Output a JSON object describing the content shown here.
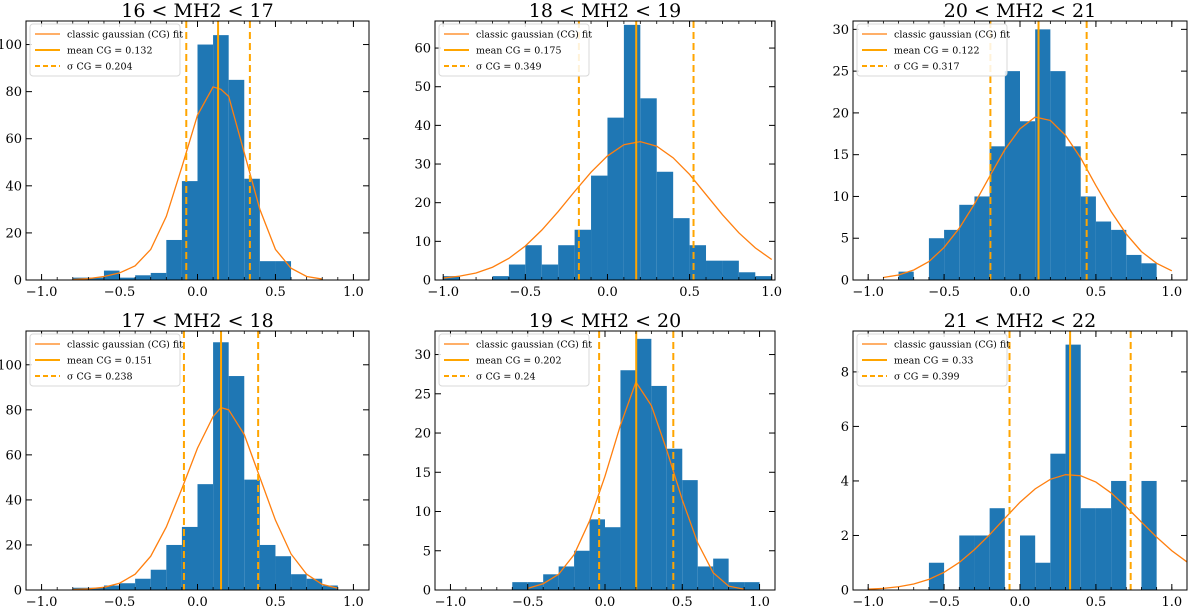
{
  "figure_title": "Histograms with classic gaussian fits per MH2 bin",
  "colors": {
    "bar": "#1f77b4",
    "fit": "#ff7f0e",
    "lines": "#ffa500",
    "axis": "#000000"
  },
  "chart_data": [
    {
      "type": "bar",
      "title": "16 < MH2 < 17",
      "xlim": [
        -1.1,
        1.1
      ],
      "ylim": [
        0,
        110
      ],
      "xticks": [
        -1.0,
        -0.5,
        0.0,
        0.5,
        1.0
      ],
      "yticks": [
        0,
        20,
        40,
        60,
        80,
        100
      ],
      "bin_edges": [
        -0.8,
        -0.7,
        -0.6,
        -0.5,
        -0.4,
        -0.3,
        -0.2,
        -0.1,
        0.0,
        0.1,
        0.2,
        0.3,
        0.4,
        0.5,
        0.6
      ],
      "values": [
        1,
        1,
        4,
        1,
        2,
        3,
        17,
        42,
        100,
        104,
        85,
        43,
        8,
        8
      ],
      "fit_x": [
        -0.8,
        -0.7,
        -0.6,
        -0.5,
        -0.4,
        -0.3,
        -0.2,
        -0.1,
        0.0,
        0.1,
        0.15,
        0.2,
        0.3,
        0.4,
        0.5,
        0.6,
        0.7,
        0.8
      ],
      "fit_y": [
        0.2,
        0.6,
        1.5,
        3,
        6,
        13,
        27,
        48,
        70,
        82,
        81,
        78,
        54,
        30,
        13,
        5,
        1.5,
        0.4
      ],
      "legend": {
        "fit_label": "classic gaussian (CG) fit",
        "mean_label": "mean CG = 0.132",
        "sigma_label": "σ CG = 0.204"
      },
      "mean": 0.132,
      "sigma": 0.204
    },
    {
      "type": "bar",
      "title": "18 < MH2 < 19",
      "xlim": [
        -1.05,
        1.02
      ],
      "ylim": [
        0,
        67
      ],
      "xticks": [
        -1.0,
        -0.5,
        0.0,
        0.5,
        1.0
      ],
      "yticks": [
        0,
        10,
        20,
        30,
        40,
        50,
        60
      ],
      "bin_edges": [
        -1.0,
        -0.9,
        -0.8,
        -0.7,
        -0.6,
        -0.5,
        -0.4,
        -0.3,
        -0.2,
        -0.1,
        0.0,
        0.1,
        0.2,
        0.3,
        0.4,
        0.5,
        0.6,
        0.7,
        0.8,
        0.9,
        1.0
      ],
      "values": [
        1,
        0,
        0,
        1,
        4,
        9,
        4,
        9,
        13,
        27,
        42,
        66,
        47,
        28,
        16,
        9,
        5,
        5,
        2,
        1
      ],
      "fit_x": [
        -1.0,
        -0.9,
        -0.8,
        -0.7,
        -0.6,
        -0.5,
        -0.4,
        -0.3,
        -0.2,
        -0.1,
        0.0,
        0.1,
        0.2,
        0.3,
        0.4,
        0.5,
        0.6,
        0.7,
        0.8,
        0.9,
        1.0
      ],
      "fit_y": [
        0.5,
        1.0,
        1.8,
        3.3,
        5.6,
        8.8,
        12.9,
        17.7,
        22.9,
        27.9,
        32.1,
        35.0,
        35.8,
        34.6,
        31.6,
        27.3,
        22.1,
        16.9,
        12.2,
        8.3,
        5.3
      ],
      "legend": {
        "fit_label": "classic gaussian (CG) fit",
        "mean_label": "mean CG = 0.175",
        "sigma_label": "σ CG = 0.349"
      },
      "mean": 0.175,
      "sigma": 0.349
    },
    {
      "type": "bar",
      "title": "20 < MH2 < 21",
      "xlim": [
        -1.1,
        1.1
      ],
      "ylim": [
        0,
        31
      ],
      "xticks": [
        -1.0,
        -0.5,
        0.0,
        0.5,
        1.0
      ],
      "yticks": [
        0,
        5,
        10,
        15,
        20,
        25,
        30
      ],
      "bin_edges": [
        -0.8,
        -0.7,
        -0.6,
        -0.5,
        -0.4,
        -0.3,
        -0.2,
        -0.1,
        0.0,
        0.1,
        0.2,
        0.3,
        0.4,
        0.5,
        0.6,
        0.7,
        0.8,
        0.9
      ],
      "values": [
        1,
        0,
        5,
        6,
        9,
        10,
        16,
        25,
        19,
        30,
        25,
        16,
        10,
        7,
        6,
        3,
        2
      ],
      "fit_x": [
        -0.9,
        -0.8,
        -0.7,
        -0.6,
        -0.5,
        -0.4,
        -0.3,
        -0.2,
        -0.1,
        0.0,
        0.1,
        0.2,
        0.3,
        0.4,
        0.5,
        0.6,
        0.7,
        0.8,
        0.9,
        1.0
      ],
      "fit_y": [
        0.3,
        0.6,
        1.2,
        2.2,
        3.9,
        6.2,
        9.1,
        12.4,
        15.6,
        18.1,
        19.5,
        19.1,
        17.3,
        14.6,
        11.3,
        8.2,
        5.5,
        3.4,
        2.0,
        1.1
      ],
      "legend": {
        "fit_label": "classic gaussian (CG) fit",
        "mean_label": "mean CG = 0.122",
        "sigma_label": "σ CG = 0.317"
      },
      "mean": 0.122,
      "sigma": 0.317
    },
    {
      "type": "bar",
      "title": "17 < MH2 < 18",
      "xlim": [
        -1.1,
        1.1
      ],
      "ylim": [
        0,
        115
      ],
      "xticks": [
        -1.0,
        -0.5,
        0.0,
        0.5,
        1.0
      ],
      "yticks": [
        0,
        20,
        40,
        60,
        80,
        100
      ],
      "bin_edges": [
        -0.8,
        -0.7,
        -0.6,
        -0.5,
        -0.4,
        -0.3,
        -0.2,
        -0.1,
        0.0,
        0.1,
        0.2,
        0.3,
        0.4,
        0.5,
        0.6,
        0.7,
        0.8,
        0.9
      ],
      "values": [
        1,
        1,
        2,
        3,
        5,
        9,
        20,
        28,
        47,
        110,
        95,
        49,
        20,
        15,
        7,
        5,
        2
      ],
      "fit_x": [
        -0.8,
        -0.7,
        -0.6,
        -0.5,
        -0.4,
        -0.3,
        -0.2,
        -0.1,
        0.0,
        0.1,
        0.15,
        0.2,
        0.3,
        0.4,
        0.5,
        0.6,
        0.7,
        0.8,
        0.9
      ],
      "fit_y": [
        0.2,
        0.5,
        1.2,
        3,
        7,
        15,
        28,
        45,
        63,
        77,
        81,
        80,
        69,
        50,
        31,
        16,
        7,
        2.5,
        0.8
      ],
      "legend": {
        "fit_label": "classic gaussian (CG) fit",
        "mean_label": "mean CG = 0.151",
        "sigma_label": "σ CG = 0.238"
      },
      "mean": 0.151,
      "sigma": 0.238
    },
    {
      "type": "bar",
      "title": "19 < MH2 < 20",
      "xlim": [
        -1.1,
        1.1
      ],
      "ylim": [
        0,
        33
      ],
      "xticks": [
        -1.0,
        -0.5,
        0.0,
        0.5,
        1.0
      ],
      "yticks": [
        0,
        5,
        10,
        15,
        20,
        25,
        30
      ],
      "bin_edges": [
        -0.6,
        -0.5,
        -0.4,
        -0.3,
        -0.2,
        -0.1,
        0.0,
        0.1,
        0.2,
        0.3,
        0.4,
        0.5,
        0.6,
        0.7,
        0.8,
        0.9,
        1.0
      ],
      "values": [
        1,
        1,
        2,
        3,
        5,
        9,
        8,
        28,
        32,
        26,
        18,
        14,
        3,
        4,
        1,
        1
      ],
      "fit_x": [
        -0.5,
        -0.4,
        -0.3,
        -0.2,
        -0.1,
        0.0,
        0.1,
        0.2,
        0.3,
        0.4,
        0.5,
        0.6,
        0.7,
        0.8,
        0.9
      ],
      "fit_y": [
        0.2,
        0.8,
        2.0,
        4.5,
        8.8,
        14.5,
        21.0,
        26.5,
        23.5,
        17.8,
        11.5,
        6.0,
        2.2,
        0.5,
        0.1
      ],
      "legend": {
        "fit_label": "classic gaussian (CG) fit",
        "mean_label": "mean CG = 0.202",
        "sigma_label": "σ CG = 0.24"
      },
      "mean": 0.202,
      "sigma": 0.24
    },
    {
      "type": "bar",
      "title": "21 < MH2 < 22",
      "xlim": [
        -1.1,
        1.1
      ],
      "ylim": [
        0,
        9.5
      ],
      "xticks": [
        -1.0,
        -0.5,
        0.0,
        0.5,
        1.0
      ],
      "yticks": [
        0,
        2,
        4,
        6,
        8
      ],
      "bin_edges": [
        -0.6,
        -0.5,
        -0.4,
        -0.3,
        -0.2,
        -0.1,
        0.0,
        0.1,
        0.2,
        0.3,
        0.4,
        0.5,
        0.6,
        0.7,
        0.8,
        0.9
      ],
      "values": [
        1,
        0,
        2,
        2,
        3,
        0,
        2,
        1,
        5,
        9,
        3,
        3,
        4,
        0,
        4
      ],
      "fit_x": [
        -1.0,
        -0.9,
        -0.8,
        -0.7,
        -0.6,
        -0.5,
        -0.4,
        -0.3,
        -0.2,
        -0.1,
        0.0,
        0.1,
        0.2,
        0.3,
        0.4,
        0.5,
        0.6,
        0.7,
        0.8,
        0.9,
        1.0,
        1.1
      ],
      "fit_y": [
        0.03,
        0.06,
        0.12,
        0.22,
        0.39,
        0.65,
        1.01,
        1.48,
        2.03,
        2.63,
        3.22,
        3.71,
        4.06,
        4.23,
        4.19,
        3.96,
        3.56,
        3.05,
        2.49,
        1.94,
        1.44,
        1.03
      ],
      "legend": {
        "fit_label": "classic gaussian (CG) fit",
        "mean_label": "mean CG = 0.33",
        "sigma_label": "σ CG = 0.399"
      },
      "mean": 0.33,
      "sigma": 0.399
    }
  ]
}
